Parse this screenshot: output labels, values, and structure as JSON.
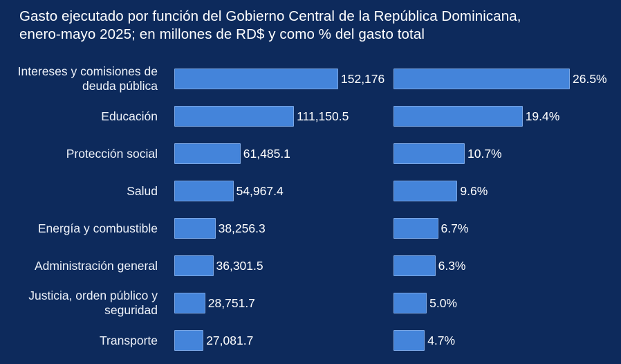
{
  "title": {
    "line1": "Gasto ejecutado por función del Gobierno Central de la República Dominicana,",
    "line2": "enero-mayo 2025; en millones de RD$ y como % del gasto total"
  },
  "colors": {
    "background": "#0d2a5c",
    "bar_fill": "#4484da",
    "bar_border": "#7aa6e4",
    "text": "#ffffff"
  },
  "chart_data": {
    "type": "bar",
    "orientation": "horizontal",
    "title": "Gasto ejecutado por función del Gobierno Central de la República Dominicana, enero-mayo 2025; en millones de RD$ y como % del gasto total",
    "categories": [
      "Intereses y comisiones de deuda pública",
      "Educación",
      "Protección social",
      "Salud",
      "Energía y combustible",
      "Administración general",
      "Justicia, orden público y seguridad",
      "Transporte"
    ],
    "series": [
      {
        "name": "Millones de RD$",
        "values": [
          152176,
          111150.5,
          61485.1,
          54967.4,
          38256.3,
          36301.5,
          28751.7,
          27081.7
        ],
        "value_labels": [
          "152,176",
          "111,150.5",
          "61,485.1",
          "54,967.4",
          "38,256.3",
          "36,301.5",
          "28,751.7",
          "27,081.7"
        ]
      },
      {
        "name": "% del gasto total",
        "values": [
          26.5,
          19.4,
          10.7,
          9.6,
          6.7,
          6.3,
          5.0,
          4.7
        ],
        "value_labels": [
          "26.5%",
          "19.4%",
          "10.7%",
          "9.6%",
          "6.7%",
          "6.3%",
          "5.0%",
          "4.7%"
        ]
      }
    ],
    "grid": false,
    "legend": false,
    "data_labels": "outside-end"
  }
}
